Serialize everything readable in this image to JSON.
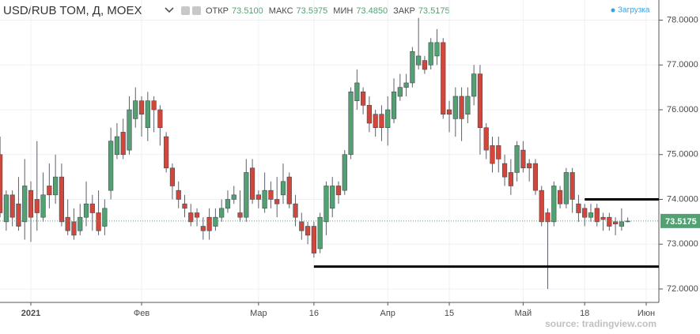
{
  "chart_data": {
    "type": "candlestick",
    "title": "USD/RUB TOM, Д, MOEX",
    "ohlc_names": {
      "open": "ОТКР",
      "high": "МАКС",
      "low": "МИН",
      "close": "ЗАКР"
    },
    "ohlc_labels": {
      "open": "73.5100",
      "high": "73.5975",
      "low": "73.4850",
      "close": "73.5175"
    },
    "status": "Загрузка",
    "source": "source: tradingview.com",
    "last_label": "73.5175",
    "up_color": "#53a173",
    "down_color": "#d2473b",
    "categories": [
      null,
      null,
      null,
      null,
      null,
      "2021",
      null,
      null,
      null,
      null,
      null,
      null,
      null,
      null,
      null,
      null,
      null,
      null,
      null,
      null,
      null,
      null,
      null,
      "Фев",
      null,
      null,
      null,
      null,
      null,
      null,
      null,
      null,
      null,
      null,
      null,
      null,
      null,
      null,
      null,
      null,
      null,
      null,
      "Мар",
      null,
      null,
      null,
      null,
      null,
      null,
      null,
      null,
      "16",
      null,
      null,
      null,
      null,
      null,
      null,
      null,
      null,
      null,
      null,
      null,
      "Апр",
      null,
      null,
      null,
      null,
      null,
      null,
      null,
      null,
      null,
      "15",
      null,
      null,
      null,
      null,
      null,
      null,
      null,
      null,
      null,
      null,
      null,
      "Май",
      null,
      null,
      null,
      null,
      null,
      null,
      null,
      null,
      null,
      "18",
      null,
      null,
      null,
      null,
      null,
      null,
      null,
      null,
      null,
      "Июн"
    ],
    "open": [
      75.0,
      73.5,
      74.1,
      73.9,
      73.5,
      74.2,
      74.0,
      73.6,
      74.3,
      74.1,
      74.5,
      73.6,
      73.5,
      73.3,
      73.6,
      73.9,
      73.7,
      73.4,
      74.2,
      75.0,
      75.5,
      75.1,
      75.8,
      76.2,
      75.6,
      76.2,
      76.0,
      75.4,
      74.7,
      74.2,
      73.9,
      73.7,
      73.7,
      73.4,
      73.6,
      73.4,
      73.6,
      73.8,
      74.0,
      73.7,
      73.6,
      74.7,
      74.1,
      73.8,
      74.2,
      74.0,
      74.1,
      74.5,
      73.9,
      73.5,
      73.4,
      73.4,
      72.9,
      73.5,
      73.8,
      74.3,
      74.2,
      75.0,
      76.2,
      76.4,
      76.1,
      75.9,
      75.9,
      75.6,
      75.8,
      76.3,
      76.5,
      76.6,
      77.0,
      77.1,
      77.0,
      77.2,
      77.5,
      76.0,
      75.8,
      76.3,
      75.9,
      76.3,
      76.8,
      75.6,
      75.2,
      75.2,
      74.8,
      74.6,
      74.6,
      75.1,
      74.8,
      74.8,
      74.2,
      73.7,
      73.5,
      74.2,
      73.9,
      74.6,
      73.9,
      73.8,
      73.6,
      73.8,
      73.6,
      73.6,
      73.5,
      73.4,
      73.51,
      null,
      null,
      null
    ],
    "high": [
      75.4,
      74.2,
      74.2,
      74.5,
      74.9,
      74.4,
      75.3,
      74.6,
      74.8,
      75.0,
      74.8,
      74.0,
      73.8,
      73.9,
      74.4,
      74.1,
      74.2,
      74.0,
      75.6,
      75.7,
      75.8,
      76.3,
      76.5,
      76.3,
      76.4,
      76.3,
      76.1,
      75.5,
      74.8,
      74.4,
      74.1,
      73.9,
      73.8,
      73.6,
      73.8,
      73.8,
      74.0,
      74.2,
      74.3,
      74.2,
      74.9,
      74.9,
      74.2,
      74.6,
      74.4,
      74.5,
      74.8,
      74.6,
      74.1,
      73.7,
      73.5,
      73.5,
      73.7,
      74.4,
      74.5,
      74.4,
      75.1,
      76.5,
      76.9,
      76.5,
      76.3,
      76.0,
      76.1,
      76.3,
      76.7,
      76.8,
      76.8,
      77.4,
      78.05,
      77.2,
      77.6,
      77.8,
      77.6,
      76.2,
      76.5,
      76.5,
      76.5,
      77.0,
      77.0,
      75.7,
      75.4,
      75.4,
      75.0,
      74.9,
      75.3,
      75.3,
      74.9,
      74.9,
      74.3,
      73.8,
      74.4,
      74.3,
      74.7,
      74.7,
      74.1,
      73.9,
      73.9,
      73.9,
      73.7,
      73.7,
      73.6,
      73.8,
      73.5975,
      null,
      null,
      null
    ],
    "low": [
      73.6,
      73.3,
      73.4,
      73.3,
      73.1,
      73.05,
      73.3,
      73.5,
      73.8,
      73.9,
      73.4,
      73.2,
      73.1,
      73.2,
      73.4,
      73.3,
      73.2,
      73.2,
      74.0,
      74.9,
      74.9,
      75.0,
      75.6,
      75.4,
      75.3,
      75.5,
      75.2,
      74.6,
      74.0,
      73.8,
      73.6,
      73.4,
      73.4,
      73.1,
      73.1,
      73.3,
      73.5,
      73.7,
      73.9,
      73.5,
      73.5,
      73.9,
      73.8,
      73.7,
      73.8,
      73.6,
      73.9,
      73.8,
      73.4,
      73.1,
      73.0,
      72.7,
      72.8,
      73.2,
      73.6,
      73.9,
      74.1,
      74.9,
      76.0,
      75.9,
      75.5,
      75.4,
      75.3,
      75.2,
      75.7,
      76.2,
      76.3,
      76.5,
      76.9,
      76.8,
      76.9,
      77.0,
      75.8,
      75.5,
      75.4,
      75.3,
      75.7,
      76.1,
      75.0,
      74.9,
      74.6,
      74.6,
      74.3,
      74.1,
      74.4,
      74.6,
      74.4,
      74.1,
      73.4,
      72.0,
      73.4,
      73.8,
      73.8,
      73.7,
      73.5,
      73.4,
      73.5,
      73.4,
      73.3,
      73.3,
      73.2,
      73.3,
      73.485,
      null,
      null,
      null
    ],
    "close": [
      73.7,
      74.1,
      73.6,
      73.4,
      74.3,
      73.6,
      73.7,
      74.1,
      74.1,
      74.5,
      73.5,
      73.3,
      73.2,
      73.6,
      73.9,
      73.7,
      73.3,
      73.8,
      75.3,
      75.4,
      75.0,
      76.0,
      76.2,
      75.9,
      76.2,
      76.0,
      75.6,
      74.7,
      74.3,
      74.0,
      73.8,
      73.5,
      73.6,
      73.3,
      73.3,
      73.6,
      73.8,
      74.0,
      74.1,
      73.6,
      74.6,
      74.0,
      74.0,
      74.2,
      74.0,
      73.9,
      74.4,
      73.9,
      73.6,
      73.3,
      73.2,
      72.8,
      73.6,
      74.3,
      74.3,
      74.1,
      75.0,
      76.4,
      76.6,
      76.1,
      75.7,
      75.6,
      75.6,
      76.0,
      76.4,
      76.5,
      76.6,
      77.3,
      77.2,
      76.9,
      77.5,
      77.5,
      75.9,
      75.9,
      76.3,
      75.8,
      76.3,
      76.8,
      75.6,
      75.1,
      74.8,
      74.9,
      74.5,
      74.3,
      75.2,
      74.7,
      74.7,
      74.2,
      73.5,
      73.5,
      74.3,
      73.9,
      74.6,
      74.0,
      73.7,
      73.6,
      73.7,
      73.5,
      73.55,
      73.4,
      73.45,
      73.5,
      73.5175,
      null,
      null,
      null
    ],
    "levels": [
      {
        "value": 74.0,
        "start": 95
      },
      {
        "value": 72.5,
        "start": 51
      }
    ],
    "ylim": [
      71.7,
      78.45
    ],
    "yticks": [
      {
        "value": 72,
        "label": "72.0000"
      },
      {
        "value": 73,
        "label": "73.0000"
      },
      {
        "value": 74,
        "label": "74.0000"
      },
      {
        "value": 75,
        "label": "75.0000"
      },
      {
        "value": 76,
        "label": "76.0000"
      },
      {
        "value": 77,
        "label": "77.0000"
      },
      {
        "value": 78,
        "label": "78.0000"
      }
    ],
    "grid": true
  }
}
